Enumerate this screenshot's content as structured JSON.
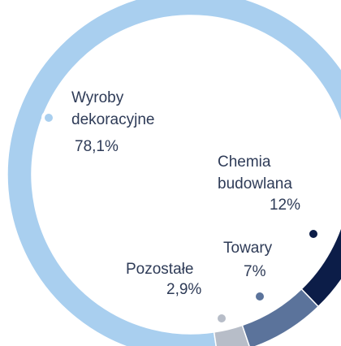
{
  "chart_data": {
    "type": "donut",
    "categories": [
      "Wyroby dekoracyjne",
      "Chemia budowlana",
      "Towary",
      "Pozostałe"
    ],
    "series": [
      {
        "values": [
          78.1,
          12,
          7,
          2.9
        ],
        "value_labels": [
          "78,1%",
          "12%",
          "7%",
          "2,9%"
        ],
        "colors": [
          "#a9cfef",
          "#0c1d48",
          "#5b739b",
          "#b7bdc8"
        ]
      }
    ]
  }
}
